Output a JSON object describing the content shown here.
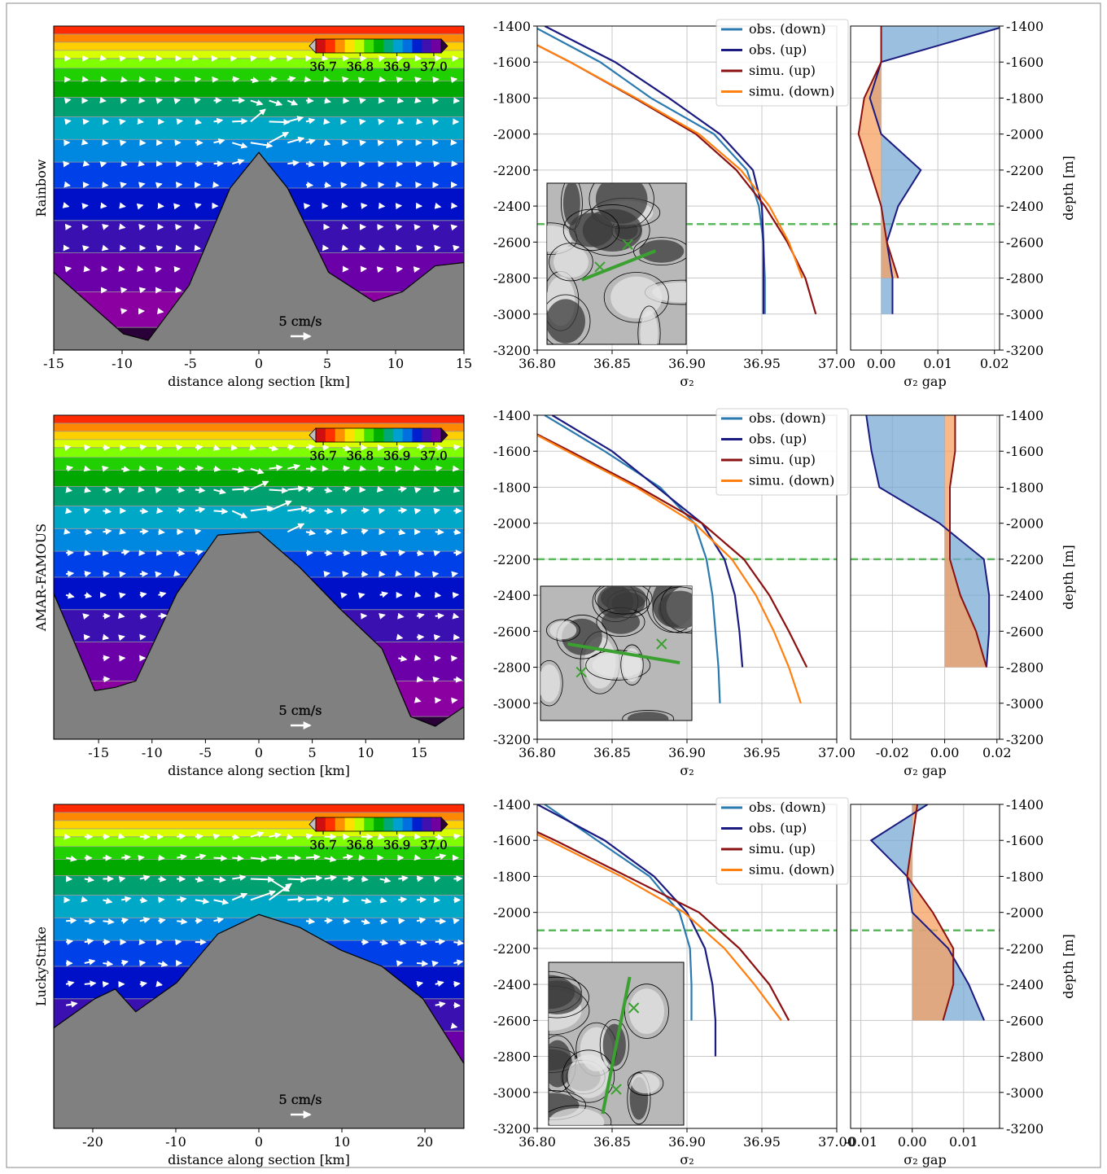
{
  "chart_data": [
    {
      "type": "section",
      "ylabel": "Rainbow",
      "xlabel": "distance along section [km]",
      "xlim": [
        -15,
        15
      ],
      "xticks": [
        -15,
        -10,
        -5,
        0,
        5,
        10,
        15
      ],
      "clim": [
        36.68,
        37.02
      ],
      "colorbar_ticks": [
        36.7,
        36.8,
        36.9,
        {
          "value": 37,
          "label": "37.0"
        }
      ],
      "scale_label": "5 cm/s"
    },
    {
      "type": "line",
      "xlabel": "σ₂",
      "xlim": [
        36.8,
        37
      ],
      "xticks": [
        {
          "value": 36.8,
          "label": "36.80"
        },
        {
          "value": 36.85,
          "label": "36.85"
        },
        {
          "value": 36.9,
          "label": "36.90"
        },
        {
          "value": 36.95,
          "label": "36.95"
        },
        {
          "value": 37,
          "label": "37.00"
        }
      ],
      "ylim": [
        -3200,
        -1400
      ],
      "yticks": [
        -3200,
        -3000,
        -2800,
        -2600,
        -2400,
        -2200,
        -2000,
        -1800,
        -1600,
        -1400
      ],
      "grid": true,
      "legend": "upper right",
      "hline": {
        "value": -2500,
        "color": "#5cb85c"
      },
      "y": [
        -1400,
        -1600,
        -1800,
        -2000,
        -2200,
        -2400,
        -2600,
        -2800,
        -3000,
        -3200
      ],
      "series": [
        {
          "name": "obs. (down)",
          "color": "#2a7ab0",
          "values": [
            36.797,
            36.842,
            36.876,
            36.918,
            36.94,
            36.948,
            36.951,
            36.952,
            36.952,
            null
          ]
        },
        {
          "name": "obs. (up)",
          "color": "#1a1a80",
          "values": [
            36.805,
            36.852,
            36.888,
            36.922,
            36.944,
            36.95,
            36.951,
            36.951,
            36.951,
            null
          ]
        },
        {
          "name": "simu. (up)",
          "color": "#8b1010",
          "values": [
            36.775,
            36.822,
            36.865,
            36.906,
            36.933,
            36.952,
            36.967,
            36.979,
            36.986,
            null
          ]
        },
        {
          "name": "simu. (down)",
          "color": "#ff8010",
          "values": [
            36.775,
            36.822,
            36.866,
            36.908,
            36.936,
            36.955,
            36.968,
            36.977,
            null,
            null
          ]
        }
      ]
    },
    {
      "type": "gap",
      "xlabel": "σ₂ gap",
      "ylabel": "depth [m]",
      "xlim": [
        -0.0054,
        0.0209
      ],
      "xticks": [
        {
          "value": 0,
          "label": "0.00"
        },
        {
          "value": 0.01,
          "label": "0.01"
        },
        {
          "value": 0.02,
          "label": "0.02"
        }
      ],
      "ylim": [
        -3200,
        -1400
      ],
      "yticks": [
        -3200,
        -3000,
        -2800,
        -2600,
        -2400,
        -2200,
        -2000,
        -1800,
        -1600,
        -1400
      ],
      "grid": true,
      "hline": {
        "value": -2500,
        "color": "#5cb85c"
      },
      "y": [
        -1400,
        -1600,
        -1800,
        -2000,
        -2200,
        -2400,
        -2600,
        -2800,
        -3000,
        -3200
      ],
      "series": [
        {
          "color": "#1a1a80",
          "fill": "#7aaad4",
          "values": [
            0.022,
            0,
            -0.002,
            0,
            0.007,
            0.003,
            0.001,
            0.002,
            0.002,
            null
          ]
        },
        {
          "color": "#8b1010",
          "fill": "#f5a060",
          "values": [
            0,
            0,
            -0.003,
            -0.004,
            -0.002,
            0,
            0.001,
            0.003,
            null,
            null
          ]
        }
      ]
    },
    {
      "type": "section",
      "ylabel": "AMAR-FAMOUS",
      "xlabel": "distance along section [km]",
      "xlim": [
        -19.2,
        19.2
      ],
      "xticks": [
        -15,
        -10,
        -5,
        0,
        5,
        10,
        15
      ],
      "clim": [
        36.68,
        37.02
      ],
      "colorbar_ticks": [
        36.7,
        36.8,
        36.9,
        {
          "value": 37,
          "label": "37.0"
        }
      ],
      "scale_label": "5 cm/s"
    },
    {
      "type": "line",
      "xlabel": "σ₂",
      "xlim": [
        36.8,
        37
      ],
      "xticks": [
        {
          "value": 36.8,
          "label": "36.80"
        },
        {
          "value": 36.85,
          "label": "36.85"
        },
        {
          "value": 36.9,
          "label": "36.90"
        },
        {
          "value": 36.95,
          "label": "36.95"
        },
        {
          "value": 37,
          "label": "37.00"
        }
      ],
      "ylim": [
        -3200,
        -1400
      ],
      "yticks": [
        -3200,
        -3000,
        -2800,
        -2600,
        -2400,
        -2200,
        -2000,
        -1800,
        -1600,
        -1400
      ],
      "grid": true,
      "legend": "upper right",
      "hline": {
        "value": -2200,
        "color": "#5cb85c"
      },
      "y": [
        -1400,
        -1600,
        -1800,
        -2000,
        -2200,
        -2400,
        -2600,
        -2800,
        -3000,
        -3200
      ],
      "series": [
        {
          "name": "obs. (down)",
          "color": "#2a7ab0",
          "values": [
            36.805,
            36.845,
            36.882,
            36.905,
            36.913,
            36.917,
            36.919,
            36.921,
            36.922,
            null
          ]
        },
        {
          "name": "obs. (up)",
          "color": "#1a1a80",
          "values": [
            36.81,
            36.85,
            36.88,
            36.91,
            36.925,
            36.932,
            36.935,
            36.937,
            null,
            null
          ]
        },
        {
          "name": "simu. (up)",
          "color": "#8b1010",
          "values": [
            36.775,
            36.822,
            36.868,
            36.91,
            36.938,
            36.955,
            36.968,
            36.98,
            null,
            null
          ]
        },
        {
          "name": "simu. (down)",
          "color": "#ff8010",
          "values": [
            36.775,
            36.82,
            36.866,
            36.905,
            36.93,
            36.946,
            36.958,
            36.968,
            36.976,
            null
          ]
        }
      ]
    },
    {
      "type": "gap",
      "xlabel": "σ₂ gap",
      "ylabel": "depth [m]",
      "xlim": [
        -0.036,
        0.021
      ],
      "xticks": [
        {
          "value": -0.02,
          "label": "-0.02"
        },
        {
          "value": 0,
          "label": "0.00"
        },
        {
          "value": 0.02,
          "label": "0.02"
        }
      ],
      "ylim": [
        -3200,
        -1400
      ],
      "yticks": [
        -3200,
        -3000,
        -2800,
        -2600,
        -2400,
        -2200,
        -2000,
        -1800,
        -1600,
        -1400
      ],
      "grid": true,
      "hline": {
        "value": -2200,
        "color": "#5cb85c"
      },
      "y": [
        -1400,
        -1600,
        -1800,
        -2000,
        -2200,
        -2400,
        -2600,
        -2800,
        -3000,
        -3200
      ],
      "series": [
        {
          "color": "#1a1a80",
          "fill": "#7aaad4",
          "values": [
            -0.03,
            -0.028,
            -0.025,
            -0.002,
            0.015,
            0.017,
            0.017,
            0.016,
            null,
            null
          ]
        },
        {
          "color": "#8b1010",
          "fill": "#f5a060",
          "values": [
            0.004,
            0.004,
            0.002,
            0.002,
            0.002,
            0.006,
            0.012,
            0.016,
            null,
            null
          ]
        }
      ]
    },
    {
      "type": "section",
      "ylabel": "LuckyStrike",
      "xlabel": "distance along section [km]",
      "xlim": [
        -24.7,
        24.7
      ],
      "xticks": [
        -20,
        -10,
        0,
        10,
        20
      ],
      "clim": [
        36.68,
        37.02
      ],
      "colorbar_ticks": [
        36.7,
        36.8,
        36.9,
        {
          "value": 37,
          "label": "37.0"
        }
      ],
      "scale_label": "5 cm/s"
    },
    {
      "type": "line",
      "xlabel": "σ₂",
      "xlim": [
        36.8,
        37
      ],
      "xticks": [
        {
          "value": 36.8,
          "label": "36.80"
        },
        {
          "value": 36.85,
          "label": "36.85"
        },
        {
          "value": 36.9,
          "label": "36.90"
        },
        {
          "value": 36.95,
          "label": "36.95"
        },
        {
          "value": 37,
          "label": "37.00"
        }
      ],
      "ylim": [
        -3200,
        -1400
      ],
      "yticks": [
        -3200,
        -3000,
        -2800,
        -2600,
        -2400,
        -2200,
        -2000,
        -1800,
        -1600,
        -1400
      ],
      "grid": true,
      "legend": "upper right",
      "hline": {
        "value": -2100,
        "color": "#5cb85c"
      },
      "y": [
        -1400,
        -1600,
        -1800,
        -2000,
        -2200,
        -2400,
        -2600,
        -2800,
        -3000,
        -3200
      ],
      "series": [
        {
          "name": "obs. (down)",
          "color": "#2a7ab0",
          "values": [
            36.805,
            36.84,
            36.875,
            36.895,
            36.902,
            36.903,
            36.903,
            null,
            null,
            null
          ]
        },
        {
          "name": "obs. (up)",
          "color": "#1a1a80",
          "values": [
            36.8,
            36.845,
            36.878,
            36.9,
            36.912,
            36.917,
            36.919,
            36.919,
            null,
            null
          ]
        },
        {
          "name": "simu. (up)",
          "color": "#8b1010",
          "values": [
            36.76,
            36.812,
            36.86,
            36.908,
            36.935,
            36.955,
            36.968,
            null,
            null,
            null
          ]
        },
        {
          "name": "simu. (down)",
          "color": "#ff8010",
          "values": [
            36.76,
            36.808,
            36.856,
            36.898,
            36.925,
            36.945,
            36.963,
            null,
            null,
            null
          ]
        }
      ]
    },
    {
      "type": "gap",
      "xlabel": "σ₂ gap",
      "ylabel": "depth [m]",
      "xlim": [
        -0.012,
        0.017
      ],
      "xticks": [
        {
          "value": -0.01,
          "label": "-0.01"
        },
        {
          "value": 0,
          "label": "0.00"
        },
        {
          "value": 0.01,
          "label": "0.01"
        }
      ],
      "ylim": [
        -3200,
        -1400
      ],
      "yticks": [
        -3200,
        -3000,
        -2800,
        -2600,
        -2400,
        -2200,
        -2000,
        -1800,
        -1600,
        -1400
      ],
      "grid": true,
      "hline": {
        "value": -2100,
        "color": "#5cb85c"
      },
      "y": [
        -1400,
        -1600,
        -1800,
        -2000,
        -2200,
        -2400,
        -2600,
        -2800,
        -3000,
        -3200
      ],
      "series": [
        {
          "color": "#1a1a80",
          "fill": "#7aaad4",
          "values": [
            0.003,
            -0.008,
            -0.001,
            0,
            0.007,
            0.011,
            0.014,
            null,
            null,
            null
          ]
        },
        {
          "color": "#8b1010",
          "fill": "#f5a060",
          "values": [
            0.001,
            0,
            -0.001,
            0.004,
            0.008,
            0.008,
            0.006,
            null,
            null,
            null
          ]
        }
      ]
    }
  ]
}
